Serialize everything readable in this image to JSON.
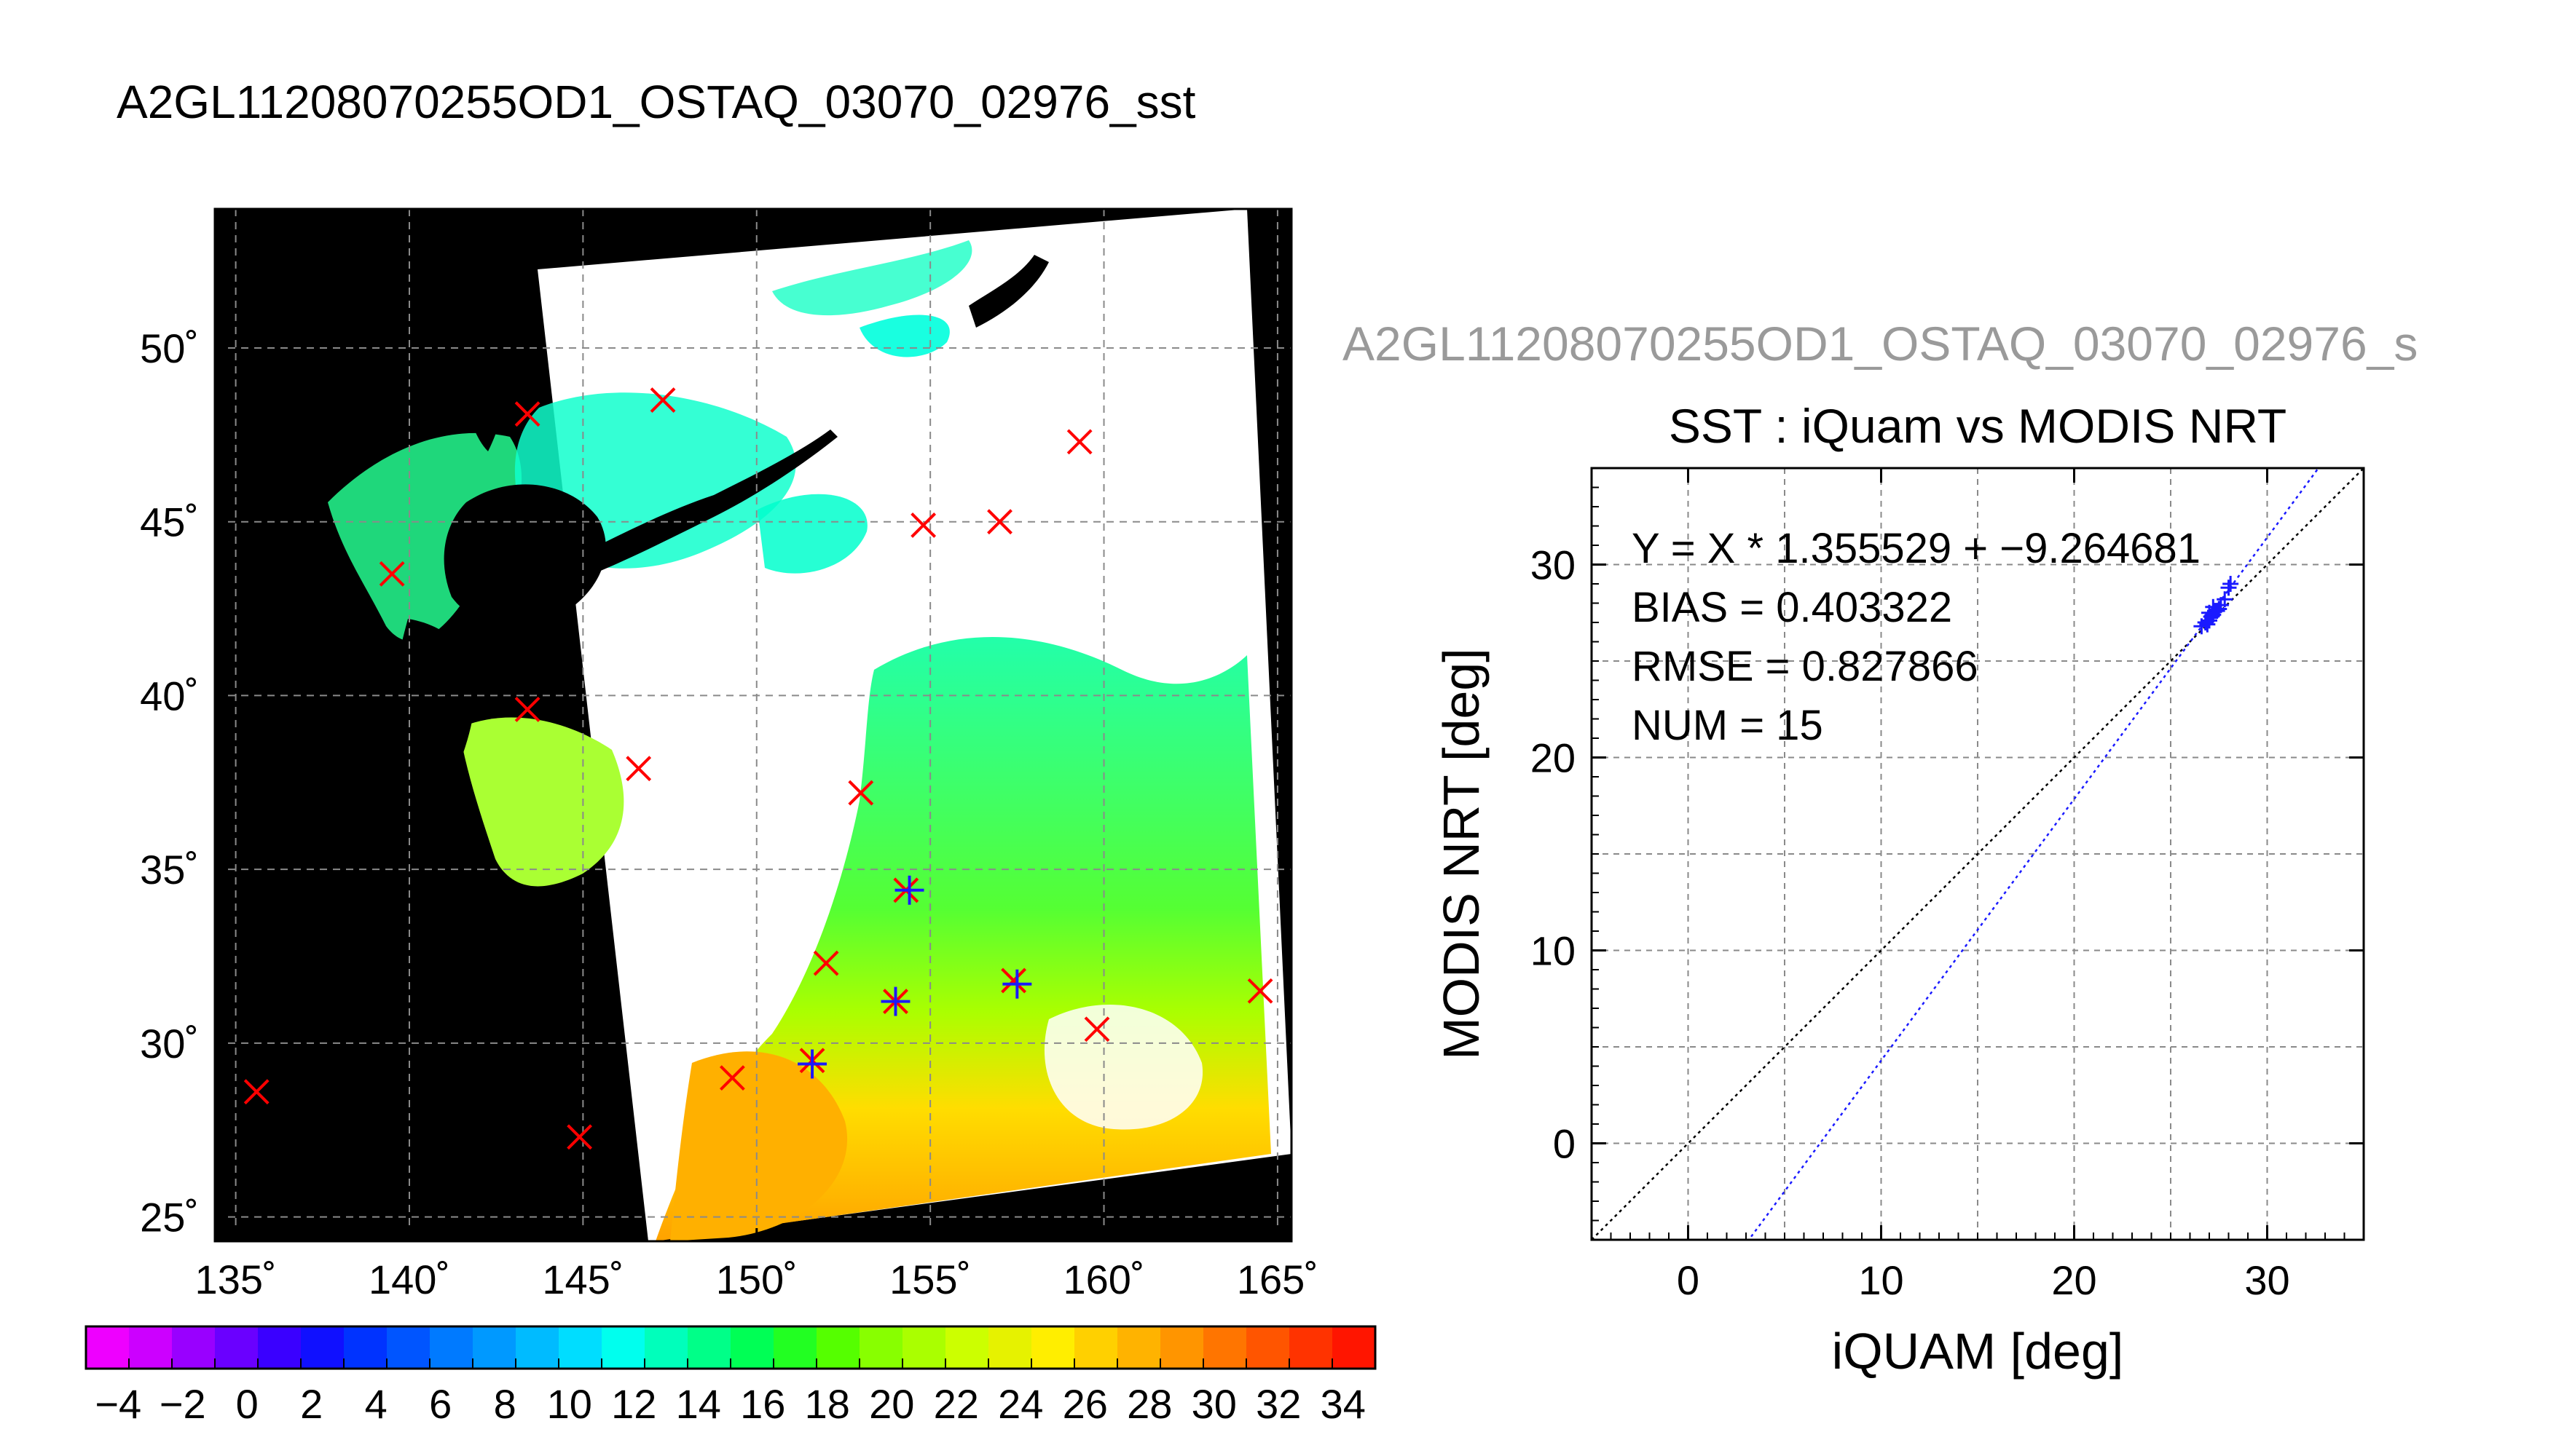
{
  "main_title": "A2GL11208070255OD1_OSTAQ_03070_02976_sst",
  "right_title": "A2GL11208070255OD1_OSTAQ_03070_02976_s",
  "map": {
    "lon_ticks": [
      "135˚",
      "140˚",
      "145˚",
      "150˚",
      "155˚",
      "160˚",
      "165˚"
    ],
    "lat_ticks": [
      "50˚",
      "45˚",
      "40˚",
      "35˚",
      "30˚",
      "25˚"
    ],
    "lon_values": [
      135,
      140,
      145,
      150,
      155,
      160,
      165
    ],
    "lat_values": [
      50,
      45,
      40,
      35,
      30,
      25
    ],
    "lon_range": [
      134.4,
      165.4
    ],
    "lat_range": [
      54.0,
      24.3
    ],
    "colors": {
      "land": "#000000",
      "cloud": "#ffffff",
      "grid": "#8a8a8a",
      "marker_x": "#ff0000",
      "marker_plus": "#1a1aff"
    },
    "x_markers": [
      [
        135.6,
        28.6
      ],
      [
        144.9,
        27.3
      ],
      [
        149.3,
        29.0
      ],
      [
        151.6,
        29.5
      ],
      [
        152.0,
        32.3
      ],
      [
        154.0,
        31.2
      ],
      [
        154.3,
        34.4
      ],
      [
        157.4,
        31.8
      ],
      [
        159.8,
        30.4
      ],
      [
        164.5,
        31.5
      ],
      [
        153.0,
        37.2
      ],
      [
        146.6,
        37.9
      ],
      [
        143.4,
        39.6
      ],
      [
        139.5,
        43.5
      ],
      [
        143.4,
        48.1
      ],
      [
        147.3,
        48.5
      ],
      [
        154.8,
        44.9
      ],
      [
        157.0,
        45.0
      ],
      [
        159.3,
        47.3
      ]
    ],
    "plus_markers": [
      [
        151.6,
        29.4
      ],
      [
        154.4,
        34.4
      ],
      [
        157.5,
        31.7
      ],
      [
        154.0,
        31.2
      ]
    ]
  },
  "colorbar": {
    "labels": [
      "−4",
      "−2",
      "0",
      "2",
      "4",
      "6",
      "8",
      "10",
      "12",
      "14",
      "16",
      "18",
      "20",
      "22",
      "24",
      "26",
      "28",
      "30",
      "32",
      "34"
    ],
    "colors": [
      "#ee00ff",
      "#cc00ff",
      "#9900ff",
      "#6a00ff",
      "#3a00ff",
      "#1010ff",
      "#0033ff",
      "#0055ff",
      "#007aff",
      "#0099ff",
      "#00bbff",
      "#00ddff",
      "#00ffee",
      "#00ffbb",
      "#00ff88",
      "#00ff55",
      "#22ff22",
      "#55ff00",
      "#88ff00",
      "#aaff00",
      "#ccff00",
      "#e6f200",
      "#ffee00",
      "#ffd000",
      "#ffb300",
      "#ff9500",
      "#ff7500",
      "#ff5500",
      "#ff3300",
      "#ff1500"
    ]
  },
  "chart_data": {
    "type": "scatter",
    "title": "SST : iQuam vs MODIS NRT",
    "xlabel": "iQUAM [deg]",
    "ylabel": "MODIS NRT [deg]",
    "xlim": [
      -5,
      35
    ],
    "ylim": [
      -5,
      35
    ],
    "xticks": [
      0,
      10,
      20,
      30
    ],
    "yticks": [
      0,
      10,
      20,
      30
    ],
    "grid": true,
    "annotations": [
      "Y = X * 1.355529 + −9.264681",
      "BIAS = 0.403322",
      "RMSE = 0.827866",
      "NUM = 15"
    ],
    "fit": {
      "slope": 1.355529,
      "intercept": -9.264681
    },
    "points": [
      [
        26.6,
        26.8
      ],
      [
        26.8,
        27.0
      ],
      [
        26.9,
        26.9
      ],
      [
        27.0,
        27.1
      ],
      [
        27.1,
        27.3
      ],
      [
        27.2,
        27.4
      ],
      [
        27.0,
        27.5
      ],
      [
        27.3,
        27.6
      ],
      [
        27.4,
        27.6
      ],
      [
        27.2,
        27.8
      ],
      [
        27.5,
        27.7
      ],
      [
        27.6,
        27.9
      ],
      [
        28.0,
        28.8
      ],
      [
        28.1,
        29.0
      ],
      [
        27.8,
        28.2
      ]
    ]
  }
}
